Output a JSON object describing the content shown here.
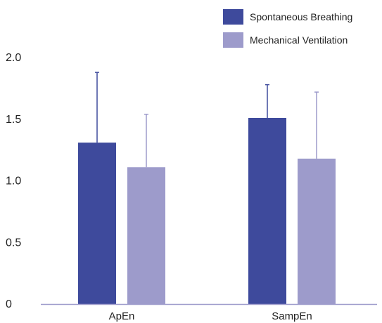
{
  "chart_data": {
    "type": "bar",
    "categories": [
      "ApEn",
      "SampEn"
    ],
    "series": [
      {
        "name": "Spontaneous Breathing",
        "color": "#3e4a9c",
        "values": [
          1.31,
          1.51
        ],
        "errors": [
          0.57,
          0.27
        ]
      },
      {
        "name": "Mechanical Ventilation",
        "color": "#9d9bcb",
        "values": [
          1.11,
          1.18
        ],
        "errors": [
          0.43,
          0.54
        ]
      }
    ],
    "yticks": [
      {
        "value": 0,
        "label": "0"
      },
      {
        "value": 0.5,
        "label": "0.5"
      },
      {
        "value": 1.0,
        "label": "1.0"
      },
      {
        "value": 1.5,
        "label": "1.5"
      },
      {
        "value": 2.0,
        "label": "2.0"
      }
    ],
    "ylim": [
      0,
      2.0
    ],
    "grid": false,
    "legend_position": "top-right",
    "axis_color": "#9d9bcb"
  }
}
